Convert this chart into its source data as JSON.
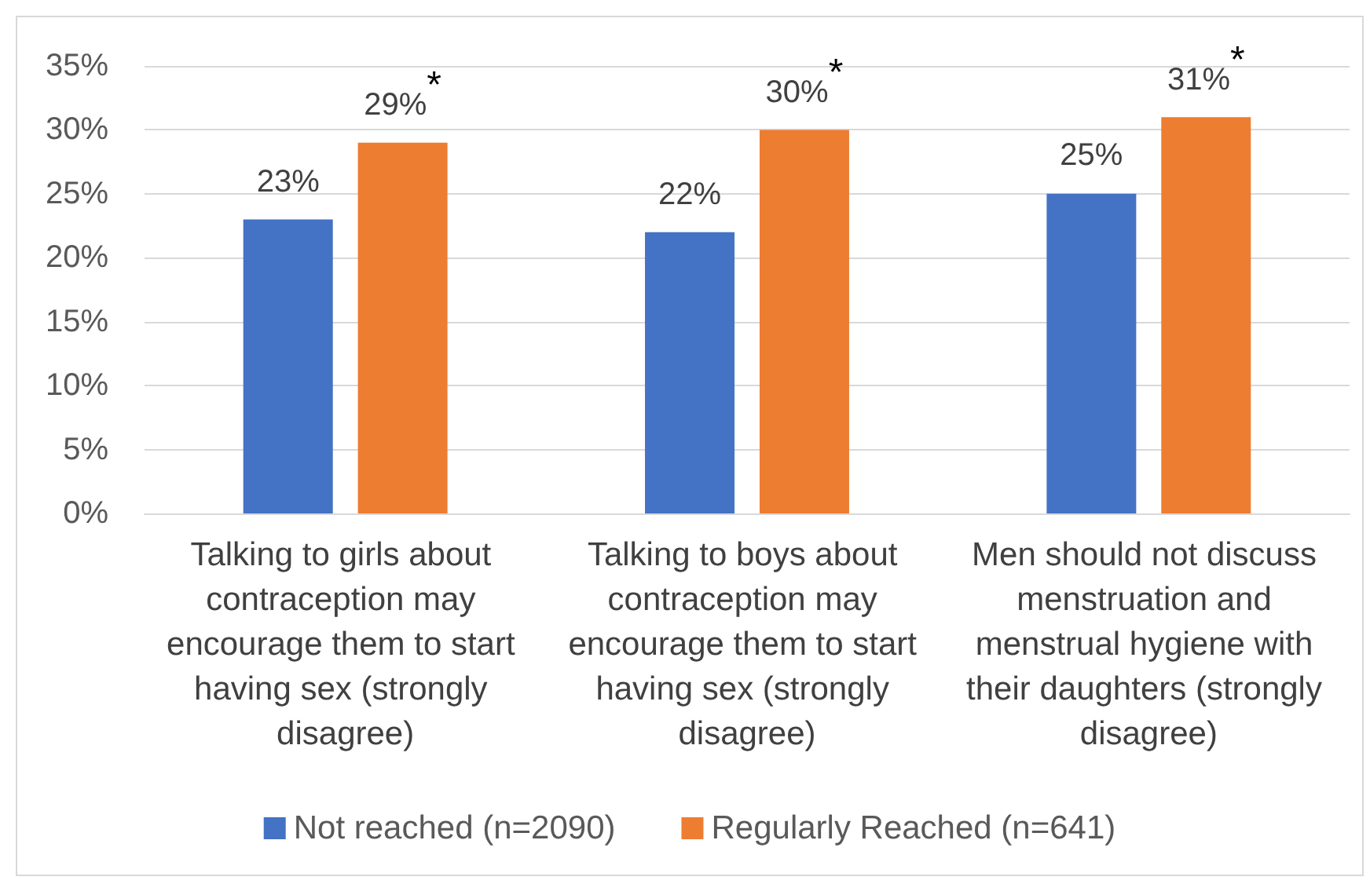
{
  "chart_data": {
    "type": "bar",
    "categories": [
      "Talking to girls about contraception may encourage them to start having sex (strongly disagree)",
      "Talking to boys about contraception may encourage them to start having sex (strongly disagree)",
      "Men should not discuss menstruation and menstrual hygiene with their daughters (strongly disagree)"
    ],
    "series": [
      {
        "name": "Not reached (n=2090)",
        "color": "#4472c4",
        "values": [
          23,
          22,
          25
        ],
        "value_labels": [
          "23%",
          "22%",
          "25%"
        ]
      },
      {
        "name": "Regularly Reached (n=641)",
        "color": "#ed7d31",
        "values": [
          29,
          30,
          31
        ],
        "value_labels": [
          "29%$^{*}$",
          "30%$^{*}$",
          "31%$^{*}$"
        ]
      }
    ],
    "ylim": [
      0,
      35
    ],
    "yticks": [
      {
        "value": 0,
        "label": "0%"
      },
      {
        "value": 5,
        "label": "5%"
      },
      {
        "value": 10,
        "label": "10%"
      },
      {
        "value": 15,
        "label": "15%"
      },
      {
        "value": 20,
        "label": "20%"
      },
      {
        "value": 25,
        "label": "25%"
      },
      {
        "value": 30,
        "label": "30%"
      },
      {
        "value": 35,
        "label": "35%"
      }
    ],
    "grid": "y",
    "legend": "bottom"
  }
}
